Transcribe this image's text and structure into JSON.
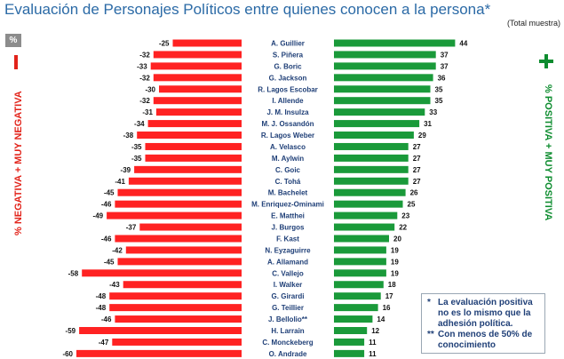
{
  "title": "Evaluación de Personajes Políticos entre quienes conocen a la persona*",
  "subtitle": "(Total muestra)",
  "percent_box": "%",
  "left_axis_label": "% NEGATIVA + MUY NEGATIVA",
  "right_axis_label": "% POSITIVA + MUY POSITIVA",
  "notes": [
    {
      "mark": "*",
      "text": "La evaluación positiva no es lo mismo que la adhesión política."
    },
    {
      "mark": "**",
      "text": "Con menos de 50% de conocimiento"
    }
  ],
  "colors": {
    "negative": "#ff2222",
    "positive": "#1a9a3a",
    "title": "#2b6aa6"
  },
  "chart_data": {
    "type": "bar",
    "orientation": "horizontal-diverging",
    "title": "Evaluación de Personajes Políticos entre quienes conocen a la persona*",
    "categories": [
      "A. Guillier",
      "S. Piñera",
      "G. Boric",
      "G. Jackson",
      "R. Lagos Escobar",
      "I. Allende",
      "J. M. Insulza",
      "M. J. Ossandón",
      "R. Lagos Weber",
      "A. Velasco",
      "M. Aylwin",
      "C. Goic",
      "C. Tohá",
      "M. Bachelet",
      "M. Enriquez-Ominami",
      "E. Matthei",
      "J. Burgos",
      "F. Kast",
      "N. Eyzaguirre",
      "A. Allamand",
      "C. Vallejo",
      "I. Walker",
      "G. Girardi",
      "G. Teillier",
      "J. Bellolio**",
      "H. Larrain",
      "C. Monckeberg",
      "O. Andrade"
    ],
    "series": [
      {
        "name": "Negativa + Muy negativa",
        "values": [
          -25,
          -32,
          -33,
          -32,
          -30,
          -32,
          -31,
          -34,
          -38,
          -35,
          -35,
          -39,
          -41,
          -45,
          -46,
          -49,
          -37,
          -46,
          -42,
          -45,
          -58,
          -43,
          -48,
          -48,
          -46,
          -59,
          -47,
          -60
        ]
      },
      {
        "name": "Positiva + Muy positiva",
        "values": [
          44,
          37,
          37,
          36,
          35,
          35,
          33,
          31,
          29,
          27,
          27,
          27,
          27,
          26,
          25,
          23,
          22,
          20,
          19,
          19,
          19,
          18,
          17,
          16,
          14,
          12,
          11,
          11
        ]
      }
    ],
    "xlim": [
      -60,
      44
    ]
  }
}
